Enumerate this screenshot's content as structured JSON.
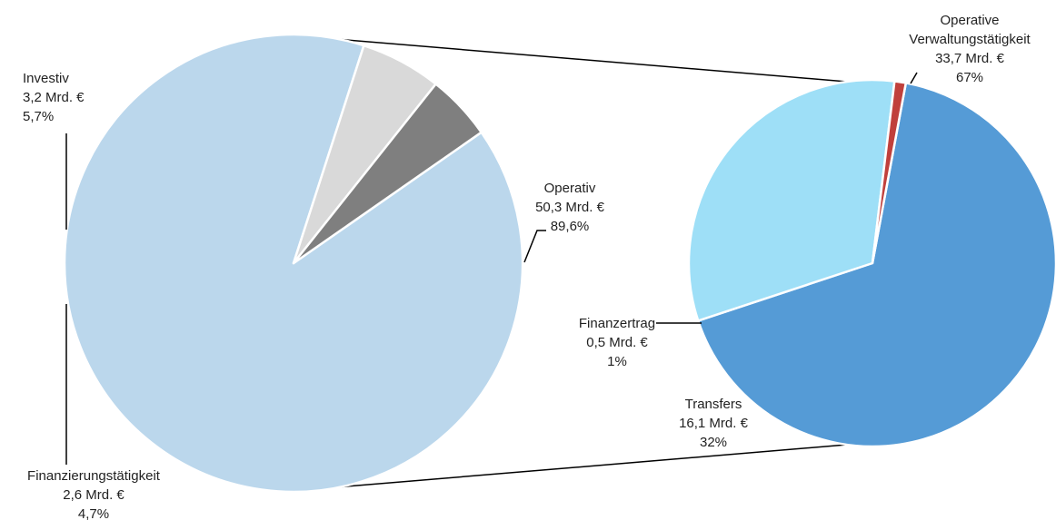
{
  "chart_data": [
    {
      "type": "pie",
      "slices": [
        {
          "name": "Operativ",
          "value": 50.3,
          "value_text": "50,3 Mrd. €",
          "percent": 89.6,
          "percent_text": "89,6%",
          "color": "#bbd7ec"
        },
        {
          "name": "Investiv",
          "value": 3.2,
          "value_text": "3,2 Mrd. €",
          "percent": 5.7,
          "percent_text": "5,7%",
          "color": "#d9d9d9"
        },
        {
          "name": "Finanzierungstätigkeit",
          "value": 2.6,
          "value_text": "2,6 Mrd. €",
          "percent": 4.7,
          "percent_text": "4,7%",
          "color": "#7f7f7f"
        }
      ]
    },
    {
      "type": "pie",
      "breakdown_of": "Operativ",
      "slices": [
        {
          "name_lines": [
            "Operative",
            "Verwaltungstätigkeit"
          ],
          "value": 33.7,
          "value_text": "33,7 Mrd. €",
          "percent": 67,
          "percent_text": "67%",
          "color": "#559bd6"
        },
        {
          "name_lines": [
            "Transfers"
          ],
          "value": 16.1,
          "value_text": "16,1 Mrd. €",
          "percent": 32,
          "percent_text": "32%",
          "color": "#9edff7"
        },
        {
          "name_lines": [
            "Finanzertrag"
          ],
          "value": 0.5,
          "value_text": "0,5 Mrd. €",
          "percent": 1,
          "percent_text": "1%",
          "color": "#c0403c"
        }
      ]
    }
  ]
}
